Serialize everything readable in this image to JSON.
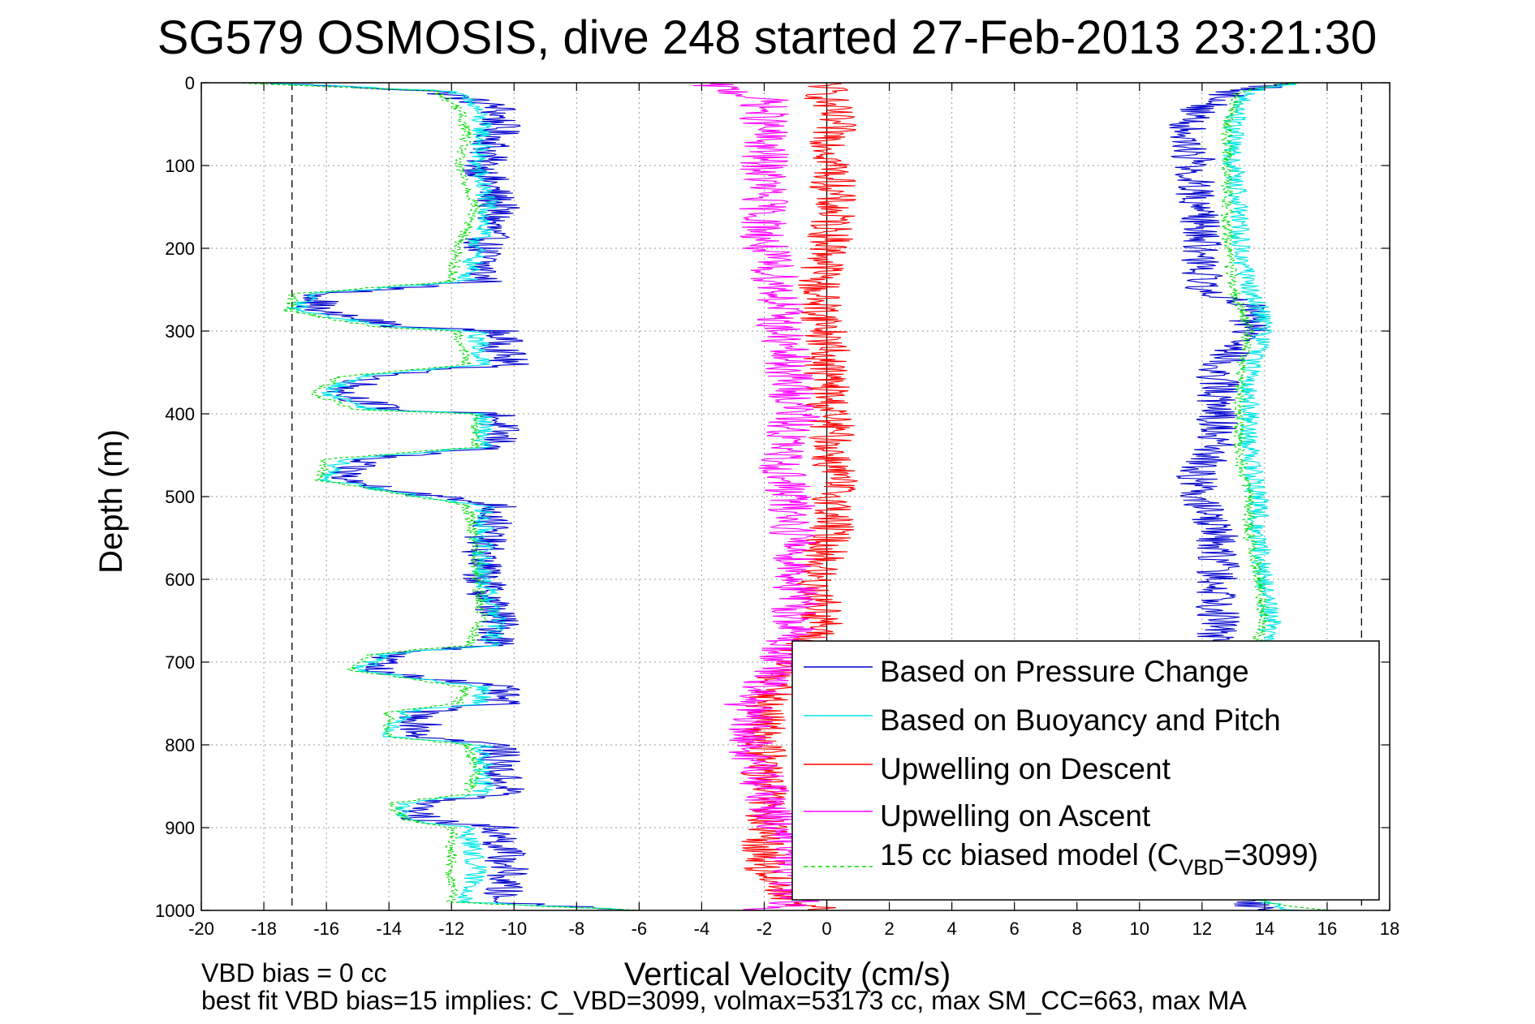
{
  "chart_data": {
    "type": "line",
    "title": "SG579 OSMOSIS, dive 248 started 27-Feb-2013 23:21:30",
    "xlabel": "Vertical Velocity (cm/s)",
    "ylabel": "Depth (m)",
    "xlim": [
      -20,
      18
    ],
    "ylim": [
      0,
      1000
    ],
    "y_reversed": true,
    "grid": true,
    "legend_position": "lower-right",
    "x_ticks": [
      "-20",
      "-18",
      "-16",
      "-14",
      "-12",
      "-10",
      "-8",
      "-6",
      "-4",
      "-2",
      "0",
      "2",
      "4",
      "6",
      "8",
      "10",
      "12",
      "14",
      "16",
      "18"
    ],
    "y_ticks": [
      "0",
      "100",
      "200",
      "300",
      "400",
      "500",
      "600",
      "700",
      "800",
      "900",
      "1000"
    ],
    "reference_lines": [
      {
        "x": -17.1,
        "style": "dashed",
        "color": "#000000"
      },
      {
        "x": 0,
        "style": "solid",
        "color": "#000000"
      },
      {
        "x": 17.1,
        "style": "dashed",
        "color": "#000000"
      }
    ],
    "series": [
      {
        "name": "Based on Pressure Change",
        "color": "#0000cc",
        "style": "solid",
        "descent": [
          [
            0,
            -18
          ],
          [
            10,
            -12.5
          ],
          [
            30,
            -10.5
          ],
          [
            60,
            -10.5
          ],
          [
            100,
            -11
          ],
          [
            150,
            -10.5
          ],
          [
            200,
            -11
          ],
          [
            240,
            -11
          ],
          [
            255,
            -16
          ],
          [
            275,
            -16.5
          ],
          [
            295,
            -13.5
          ],
          [
            300,
            -10.5
          ],
          [
            340,
            -10.2
          ],
          [
            355,
            -14.5
          ],
          [
            375,
            -15.5
          ],
          [
            395,
            -14
          ],
          [
            400,
            -10.5
          ],
          [
            440,
            -10.5
          ],
          [
            455,
            -15
          ],
          [
            480,
            -15.5
          ],
          [
            500,
            -12.5
          ],
          [
            510,
            -10.5
          ],
          [
            560,
            -11
          ],
          [
            600,
            -11
          ],
          [
            650,
            -10.5
          ],
          [
            680,
            -10.5
          ],
          [
            690,
            -14
          ],
          [
            710,
            -14.5
          ],
          [
            730,
            -10.5
          ],
          [
            750,
            -10.5
          ],
          [
            760,
            -13
          ],
          [
            790,
            -13
          ],
          [
            800,
            -10.5
          ],
          [
            830,
            -10.5
          ],
          [
            860,
            -10.2
          ],
          [
            870,
            -13
          ],
          [
            890,
            -13
          ],
          [
            900,
            -10.5
          ],
          [
            950,
            -10.2
          ],
          [
            990,
            -10.5
          ],
          [
            1000,
            -6
          ]
        ],
        "ascent": [
          [
            1000,
            14
          ],
          [
            990,
            13.5
          ],
          [
            950,
            13
          ],
          [
            900,
            12.5
          ],
          [
            850,
            12.5
          ],
          [
            800,
            12.5
          ],
          [
            750,
            12.5
          ],
          [
            700,
            12.5
          ],
          [
            650,
            12.5
          ],
          [
            600,
            12.5
          ],
          [
            550,
            12.5
          ],
          [
            500,
            12
          ],
          [
            470,
            11.8
          ],
          [
            440,
            12.5
          ],
          [
            400,
            12.5
          ],
          [
            350,
            12.5
          ],
          [
            300,
            13.5
          ],
          [
            270,
            13.5
          ],
          [
            250,
            12
          ],
          [
            200,
            12
          ],
          [
            150,
            11.8
          ],
          [
            100,
            11.8
          ],
          [
            50,
            11.5
          ],
          [
            30,
            12
          ],
          [
            10,
            13
          ],
          [
            0,
            15
          ]
        ]
      },
      {
        "name": "Based on Buoyancy and Pitch",
        "color": "#00e5e5",
        "style": "solid",
        "descent": [
          [
            0,
            -18
          ],
          [
            10,
            -12
          ],
          [
            30,
            -11.2
          ],
          [
            60,
            -11
          ],
          [
            100,
            -11.2
          ],
          [
            150,
            -10.8
          ],
          [
            200,
            -11.2
          ],
          [
            240,
            -11.5
          ],
          [
            255,
            -16.5
          ],
          [
            275,
            -17
          ],
          [
            295,
            -14
          ],
          [
            300,
            -11.2
          ],
          [
            340,
            -11
          ],
          [
            355,
            -15
          ],
          [
            375,
            -16
          ],
          [
            395,
            -14.5
          ],
          [
            400,
            -11
          ],
          [
            440,
            -11
          ],
          [
            455,
            -15.5
          ],
          [
            480,
            -16
          ],
          [
            500,
            -13
          ],
          [
            510,
            -11
          ],
          [
            560,
            -11
          ],
          [
            600,
            -11
          ],
          [
            650,
            -10.5
          ],
          [
            680,
            -10.8
          ],
          [
            690,
            -14
          ],
          [
            710,
            -15
          ],
          [
            730,
            -11
          ],
          [
            750,
            -11
          ],
          [
            760,
            -13.5
          ],
          [
            790,
            -14
          ],
          [
            800,
            -11
          ],
          [
            830,
            -11
          ],
          [
            860,
            -11
          ],
          [
            870,
            -13.5
          ],
          [
            890,
            -13.5
          ],
          [
            900,
            -11.5
          ],
          [
            950,
            -11.2
          ],
          [
            990,
            -11.5
          ],
          [
            1000,
            -6
          ]
        ],
        "ascent": [
          [
            1000,
            15
          ],
          [
            990,
            14
          ],
          [
            950,
            13.8
          ],
          [
            900,
            13.8
          ],
          [
            850,
            13.8
          ],
          [
            800,
            13.8
          ],
          [
            750,
            13.8
          ],
          [
            700,
            13.8
          ],
          [
            650,
            14.2
          ],
          [
            600,
            14
          ],
          [
            550,
            13.8
          ],
          [
            500,
            13.8
          ],
          [
            450,
            13.5
          ],
          [
            400,
            13.5
          ],
          [
            350,
            13.5
          ],
          [
            300,
            14
          ],
          [
            270,
            13.8
          ],
          [
            250,
            13.5
          ],
          [
            200,
            13.2
          ],
          [
            150,
            13.2
          ],
          [
            100,
            13
          ],
          [
            50,
            13
          ],
          [
            30,
            13.2
          ],
          [
            10,
            13.5
          ],
          [
            0,
            15
          ]
        ]
      },
      {
        "name": "Upwelling on Descent",
        "color": "#ff0000",
        "style": "solid",
        "points": [
          [
            0,
            0
          ],
          [
            20,
            0
          ],
          [
            50,
            0.2
          ],
          [
            100,
            0.2
          ],
          [
            150,
            0.2
          ],
          [
            200,
            0.1
          ],
          [
            250,
            -0.3
          ],
          [
            300,
            0
          ],
          [
            350,
            0
          ],
          [
            400,
            0.1
          ],
          [
            450,
            0.2
          ],
          [
            500,
            0.3
          ],
          [
            550,
            0.1
          ],
          [
            600,
            -0.4
          ],
          [
            650,
            -0.1
          ],
          [
            700,
            -1.2
          ],
          [
            750,
            -2
          ],
          [
            800,
            -2
          ],
          [
            850,
            -2
          ],
          [
            900,
            -2
          ],
          [
            950,
            -2
          ],
          [
            990,
            -1
          ],
          [
            1000,
            0
          ]
        ]
      },
      {
        "name": "Upwelling on Ascent",
        "color": "#ff00ff",
        "style": "solid",
        "points": [
          [
            0,
            -4
          ],
          [
            20,
            -2
          ],
          [
            50,
            -2
          ],
          [
            100,
            -2
          ],
          [
            150,
            -2
          ],
          [
            200,
            -2
          ],
          [
            250,
            -1.5
          ],
          [
            300,
            -1.5
          ],
          [
            350,
            -1.2
          ],
          [
            400,
            -1
          ],
          [
            450,
            -1.5
          ],
          [
            500,
            -1.2
          ],
          [
            550,
            -1
          ],
          [
            600,
            -1
          ],
          [
            650,
            -1
          ],
          [
            700,
            -1.5
          ],
          [
            750,
            -2.5
          ],
          [
            800,
            -2.5
          ],
          [
            850,
            -2
          ],
          [
            900,
            -1.5
          ],
          [
            950,
            -1
          ],
          [
            990,
            -1
          ],
          [
            1000,
            -2
          ]
        ]
      },
      {
        "name": "15 cc biased model (C_VBD=3099)",
        "color": "#00dd00",
        "style": "dashed",
        "descent": [
          [
            0,
            -19
          ],
          [
            10,
            -12.5
          ],
          [
            30,
            -11.8
          ],
          [
            60,
            -11.5
          ],
          [
            100,
            -11.8
          ],
          [
            150,
            -11.2
          ],
          [
            200,
            -11.8
          ],
          [
            240,
            -12
          ],
          [
            255,
            -17
          ],
          [
            275,
            -17.2
          ],
          [
            295,
            -14.5
          ],
          [
            300,
            -11.8
          ],
          [
            340,
            -11.5
          ],
          [
            355,
            -15.5
          ],
          [
            375,
            -16.5
          ],
          [
            395,
            -15
          ],
          [
            400,
            -11.2
          ],
          [
            440,
            -11.2
          ],
          [
            455,
            -16
          ],
          [
            480,
            -16.2
          ],
          [
            500,
            -13.2
          ],
          [
            510,
            -11.5
          ],
          [
            560,
            -11.2
          ],
          [
            600,
            -11.2
          ],
          [
            650,
            -11
          ],
          [
            680,
            -11.5
          ],
          [
            690,
            -14.5
          ],
          [
            710,
            -15.2
          ],
          [
            730,
            -11.5
          ],
          [
            750,
            -11.8
          ],
          [
            760,
            -14
          ],
          [
            790,
            -14
          ],
          [
            800,
            -11.5
          ],
          [
            830,
            -11.2
          ],
          [
            860,
            -11.5
          ],
          [
            870,
            -14
          ],
          [
            890,
            -13.5
          ],
          [
            900,
            -12
          ],
          [
            950,
            -12
          ],
          [
            990,
            -12
          ],
          [
            1000,
            -6
          ]
        ],
        "ascent": [
          [
            1000,
            16
          ],
          [
            990,
            14
          ],
          [
            950,
            13.5
          ],
          [
            900,
            13.5
          ],
          [
            850,
            13.5
          ],
          [
            800,
            13.5
          ],
          [
            750,
            13.5
          ],
          [
            700,
            13.5
          ],
          [
            650,
            14
          ],
          [
            600,
            13.8
          ],
          [
            550,
            13.5
          ],
          [
            500,
            13.5
          ],
          [
            450,
            13.2
          ],
          [
            400,
            13.2
          ],
          [
            350,
            13.2
          ],
          [
            300,
            13.5
          ],
          [
            270,
            13.2
          ],
          [
            250,
            13
          ],
          [
            200,
            12.8
          ],
          [
            150,
            12.8
          ],
          [
            100,
            12.8
          ],
          [
            50,
            12.8
          ],
          [
            30,
            13
          ],
          [
            10,
            13.2
          ],
          [
            0,
            15
          ]
        ]
      }
    ],
    "legend": {
      "entries": [
        "Based on Pressure Change",
        "Based on Buoyancy and Pitch",
        "Upwelling on Descent",
        "Upwelling on Ascent"
      ],
      "model_prefix": "15 cc biased model (C",
      "model_sub": "VBD",
      "model_suffix": "=3099)"
    },
    "annotations": {
      "line1": "VBD bias = 0 cc",
      "line2": "best fit VBD bias=15 implies: C_VBD=3099, volmax=53173 cc, max SM_CC=663, max MA"
    }
  }
}
